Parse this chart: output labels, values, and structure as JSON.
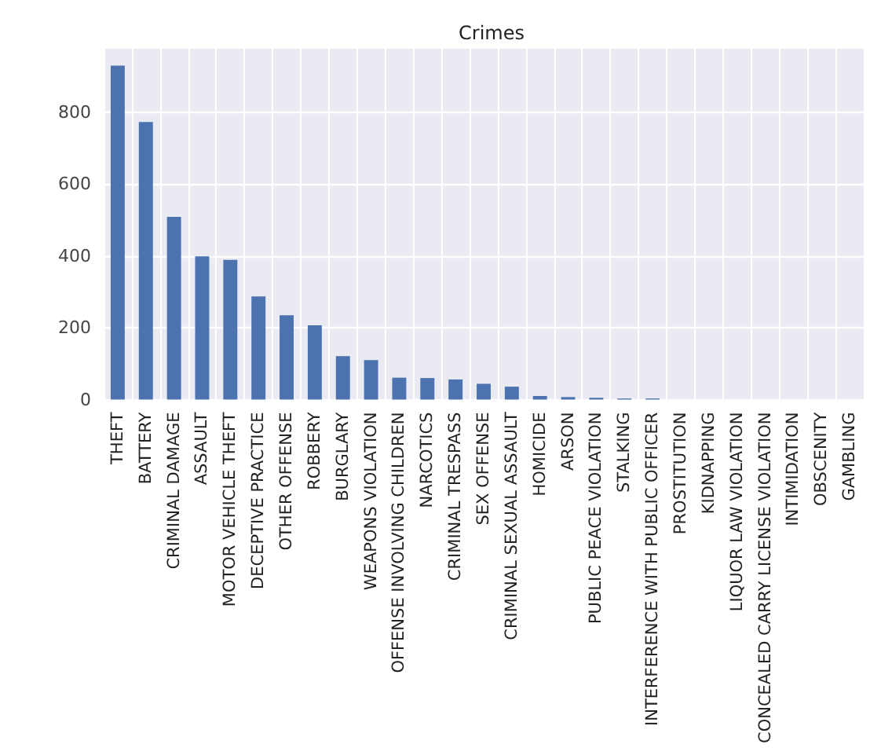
{
  "chart_data": {
    "type": "bar",
    "title": "Crimes",
    "categories": [
      "THEFT",
      "BATTERY",
      "CRIMINAL DAMAGE",
      "ASSAULT",
      "MOTOR VEHICLE THEFT",
      "DECEPTIVE PRACTICE",
      "OTHER OFFENSE",
      "ROBBERY",
      "BURGLARY",
      "WEAPONS VIOLATION",
      "OFFENSE INVOLVING CHILDREN",
      "NARCOTICS",
      "CRIMINAL TRESPASS",
      "SEX OFFENSE",
      "CRIMINAL SEXUAL ASSAULT",
      "HOMICIDE",
      "ARSON",
      "PUBLIC PEACE VIOLATION",
      "STALKING",
      "INTERFERENCE WITH PUBLIC OFFICER",
      "PROSTITUTION",
      "KIDNAPPING",
      "LIQUOR LAW VIOLATION",
      "CONCEALED CARRY LICENSE VIOLATION",
      "INTIMIDATION",
      "OBSCENITY",
      "GAMBLING"
    ],
    "values": [
      930,
      773,
      509,
      399,
      389,
      287,
      235,
      207,
      121,
      110,
      61,
      60,
      56,
      44,
      36,
      10,
      7,
      5,
      3,
      3,
      null,
      null,
      null,
      null,
      null,
      null,
      null
    ],
    "color": "#4c72b0",
    "ylim": [
      0,
      977
    ],
    "yticks": [
      0,
      200,
      400,
      600,
      800
    ],
    "grid": true
  }
}
